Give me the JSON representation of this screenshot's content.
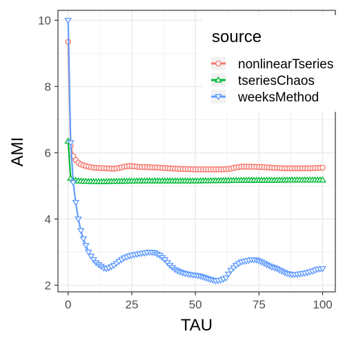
{
  "chart_data": {
    "type": "line",
    "xlabel": "TAU",
    "ylabel": "AMI",
    "xlim": [
      -4,
      105
    ],
    "ylim": [
      1.8,
      10.3
    ],
    "x_ticks": [
      0,
      25,
      50,
      75,
      100
    ],
    "y_ticks": [
      2,
      4,
      6,
      8,
      10
    ],
    "x_tick_labels": [
      "0",
      "25",
      "50",
      "75",
      "100"
    ],
    "y_tick_labels": [
      "2",
      "4",
      "6",
      "8",
      "10"
    ],
    "grid": true,
    "legend": {
      "title": "source",
      "placement": "top-right",
      "entries": [
        "nonlinearTseries",
        "tseriesChaos",
        "weeksMethod"
      ]
    },
    "series": [
      {
        "name": "nonlinearTseries",
        "color": "#F8766D",
        "marker": "circle",
        "points": [
          [
            0,
            9.35
          ],
          [
            1,
            6.2
          ],
          [
            2,
            5.9
          ],
          [
            3,
            5.78
          ],
          [
            4,
            5.7
          ],
          [
            5,
            5.65
          ],
          [
            6,
            5.62
          ],
          [
            8,
            5.58
          ],
          [
            10,
            5.55
          ],
          [
            12,
            5.54
          ],
          [
            15,
            5.53
          ],
          [
            18,
            5.52
          ],
          [
            20,
            5.54
          ],
          [
            22,
            5.58
          ],
          [
            24,
            5.6
          ],
          [
            26,
            5.59
          ],
          [
            28,
            5.57
          ],
          [
            30,
            5.57
          ],
          [
            33,
            5.56
          ],
          [
            36,
            5.55
          ],
          [
            40,
            5.53
          ],
          [
            45,
            5.51
          ],
          [
            50,
            5.5
          ],
          [
            55,
            5.5
          ],
          [
            60,
            5.5
          ],
          [
            63,
            5.51
          ],
          [
            66,
            5.56
          ],
          [
            68,
            5.58
          ],
          [
            72,
            5.58
          ],
          [
            76,
            5.57
          ],
          [
            80,
            5.55
          ],
          [
            85,
            5.53
          ],
          [
            90,
            5.53
          ],
          [
            95,
            5.53
          ],
          [
            100,
            5.55
          ]
        ]
      },
      {
        "name": "tseriesChaos",
        "color": "#00BA38",
        "marker": "triangle-up",
        "points": [
          [
            0,
            6.35
          ],
          [
            1,
            5.23
          ],
          [
            2,
            5.18
          ],
          [
            4,
            5.15
          ],
          [
            6,
            5.14
          ],
          [
            10,
            5.13
          ],
          [
            15,
            5.13
          ],
          [
            20,
            5.14
          ],
          [
            30,
            5.15
          ],
          [
            40,
            5.15
          ],
          [
            50,
            5.15
          ],
          [
            60,
            5.16
          ],
          [
            70,
            5.17
          ],
          [
            80,
            5.17
          ],
          [
            90,
            5.18
          ],
          [
            100,
            5.18
          ]
        ]
      },
      {
        "name": "weeksMethod",
        "color": "#619CFF",
        "marker": "triangle-down",
        "points": [
          [
            0,
            10.0
          ],
          [
            1,
            6.3
          ],
          [
            2,
            5.1
          ],
          [
            3,
            4.5
          ],
          [
            4,
            4.0
          ],
          [
            5,
            3.65
          ],
          [
            6,
            3.4
          ],
          [
            7,
            3.2
          ],
          [
            8,
            3.0
          ],
          [
            9,
            2.88
          ],
          [
            10,
            2.77
          ],
          [
            11,
            2.68
          ],
          [
            12,
            2.62
          ],
          [
            13,
            2.57
          ],
          [
            14,
            2.52
          ],
          [
            15,
            2.5
          ],
          [
            16,
            2.52
          ],
          [
            18,
            2.6
          ],
          [
            20,
            2.72
          ],
          [
            22,
            2.82
          ],
          [
            24,
            2.88
          ],
          [
            26,
            2.92
          ],
          [
            28,
            2.95
          ],
          [
            30,
            2.97
          ],
          [
            32,
            3.0
          ],
          [
            34,
            2.98
          ],
          [
            36,
            2.9
          ],
          [
            38,
            2.77
          ],
          [
            40,
            2.6
          ],
          [
            42,
            2.47
          ],
          [
            44,
            2.4
          ],
          [
            46,
            2.35
          ],
          [
            48,
            2.32
          ],
          [
            50,
            2.3
          ],
          [
            52,
            2.27
          ],
          [
            54,
            2.22
          ],
          [
            56,
            2.17
          ],
          [
            58,
            2.13
          ],
          [
            60,
            2.15
          ],
          [
            62,
            2.22
          ],
          [
            64,
            2.45
          ],
          [
            66,
            2.6
          ],
          [
            68,
            2.7
          ],
          [
            70,
            2.73
          ],
          [
            72,
            2.77
          ],
          [
            74,
            2.76
          ],
          [
            76,
            2.7
          ],
          [
            78,
            2.62
          ],
          [
            80,
            2.55
          ],
          [
            82,
            2.5
          ],
          [
            84,
            2.42
          ],
          [
            86,
            2.35
          ],
          [
            88,
            2.32
          ],
          [
            90,
            2.33
          ],
          [
            92,
            2.35
          ],
          [
            94,
            2.38
          ],
          [
            96,
            2.42
          ],
          [
            98,
            2.48
          ],
          [
            100,
            2.5
          ]
        ]
      }
    ]
  }
}
